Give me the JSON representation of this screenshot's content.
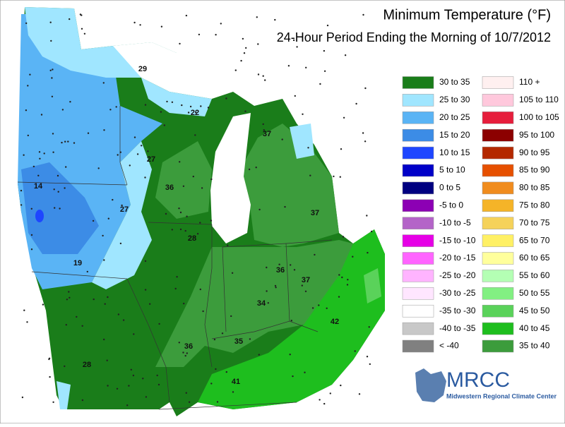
{
  "title": "Minimum Temperature (°F)",
  "subtitle": "24-Hour Period Ending the Morning of 10/7/2012",
  "legend": [
    {
      "label": "30 to 35",
      "color": "#1a7d1a"
    },
    {
      "label": "25 to 30",
      "color": "#a0e6ff"
    },
    {
      "label": "20 to 25",
      "color": "#5ab4f5"
    },
    {
      "label": "15 to 20",
      "color": "#3c8ce6"
    },
    {
      "label": "10 to 15",
      "color": "#1e46ff"
    },
    {
      "label": "5 to 10",
      "color": "#0000c8"
    },
    {
      "label": "0 to 5",
      "color": "#000080"
    },
    {
      "label": "-5 to 0",
      "color": "#8c00b4"
    },
    {
      "label": "-10 to -5",
      "color": "#b464c8"
    },
    {
      "label": "-15 to -10",
      "color": "#e600e6"
    },
    {
      "label": "-20 to -15",
      "color": "#ff64ff"
    },
    {
      "label": "-25 to -20",
      "color": "#ffb4ff"
    },
    {
      "label": "-30 to -25",
      "color": "#ffe6ff"
    },
    {
      "label": "-35 to -30",
      "color": "#ffffff"
    },
    {
      "label": "-40 to -35",
      "color": "#c8c8c8"
    },
    {
      "label": "< -40",
      "color": "#808080"
    },
    {
      "label": "110 +",
      "color": "#fff0f0"
    },
    {
      "label": "105 to 110",
      "color": "#ffc8dc"
    },
    {
      "label": "100 to 105",
      "color": "#e61e3c"
    },
    {
      "label": "95 to 100",
      "color": "#8c0000"
    },
    {
      "label": "90 to 95",
      "color": "#b42800"
    },
    {
      "label": "85 to 90",
      "color": "#e65000"
    },
    {
      "label": "80 to 85",
      "color": "#f08c1e"
    },
    {
      "label": "75 to 80",
      "color": "#f5b428"
    },
    {
      "label": "70 to 75",
      "color": "#f5d25a"
    },
    {
      "label": "65 to 70",
      "color": "#fff064"
    },
    {
      "label": "60 to 65",
      "color": "#ffff9c"
    },
    {
      "label": "55 to 60",
      "color": "#b4ffb4"
    },
    {
      "label": "50 to 55",
      "color": "#82f082"
    },
    {
      "label": "45 to 50",
      "color": "#5ad25a"
    },
    {
      "label": "40 to 45",
      "color": "#1ebe1e"
    },
    {
      "label": "35 to 40",
      "color": "#3c9c3c"
    }
  ],
  "station_labels": [
    29,
    22,
    37,
    27,
    14,
    36,
    27,
    28,
    37,
    19,
    36,
    37,
    34,
    42,
    36,
    35,
    28,
    41
  ],
  "logo": {
    "name": "MRCC",
    "full_name": "Midwestern Regional Climate Center"
  }
}
